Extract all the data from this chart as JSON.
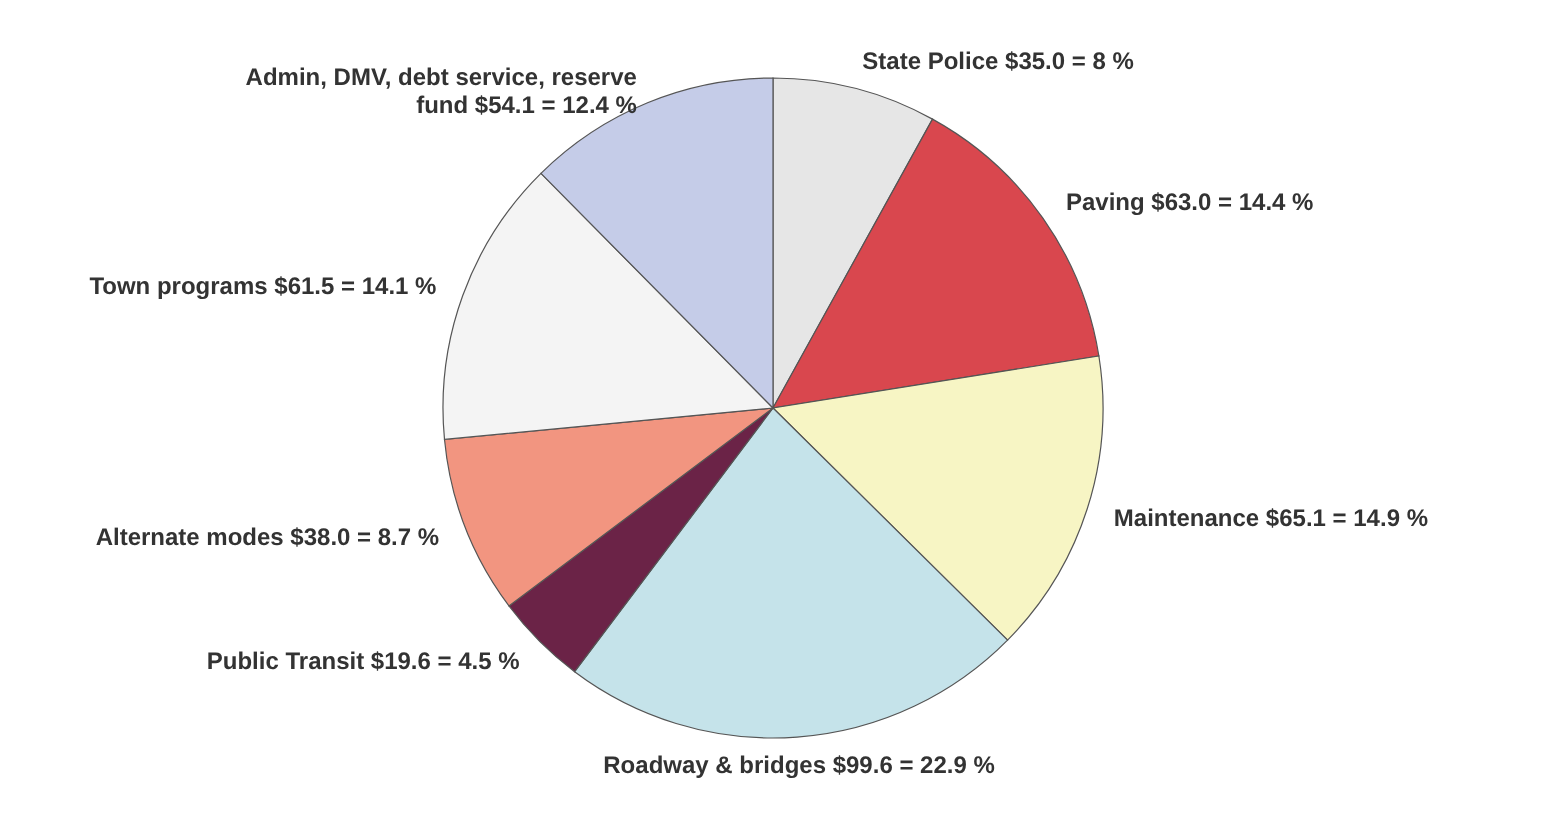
{
  "chart_data": {
    "type": "pie",
    "categories": [
      "State Police",
      "Paving",
      "Maintenance",
      "Roadway & bridges",
      "Public Transit",
      "Alternate modes",
      "Town programs",
      "Admin, DMV, debt service, reserve fund"
    ],
    "values": [
      35.0,
      63.0,
      65.1,
      99.6,
      19.6,
      38.0,
      61.5,
      54.1
    ],
    "value_labels": [
      "$35.0 = 8 %",
      "$63.0 = 14.4 %",
      "$65.1 = 14.9 %",
      "$99.6 = 22.9 %",
      "$19.6 = 4.5 %",
      "$38.0 = 8.7 %",
      "$61.5 = 14.1 %",
      "$54.1 = 12.4 %"
    ],
    "colors": [
      "#e6e6e6",
      "#d9474e",
      "#f7f5c4",
      "#c5e3ea",
      "#6b2347",
      "#f29580",
      "#f4f4f4",
      "#c5cce8"
    ]
  }
}
